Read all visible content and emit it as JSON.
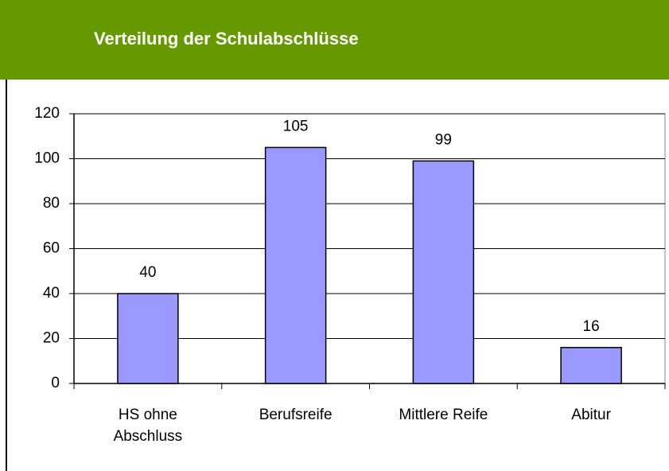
{
  "chart_data": {
    "type": "bar",
    "title": "Verteilung der Schulabschlüsse",
    "categories": [
      "HS ohne Abschluss",
      "Berufsreife",
      "Mittlere Reife",
      "Abitur"
    ],
    "values": [
      40,
      105,
      99,
      16
    ],
    "color": "#9999ff",
    "ylim": [
      0,
      120
    ],
    "yticks": [
      0,
      20,
      40,
      60,
      80,
      100,
      120
    ],
    "grid": true
  }
}
